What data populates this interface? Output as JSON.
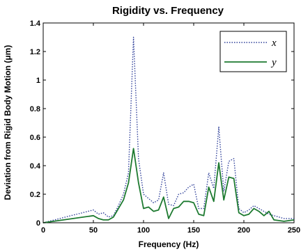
{
  "chart_data": {
    "type": "line",
    "title": "Rigidity vs. Frequency",
    "xlabel": "Frequency (Hz)",
    "ylabel": "Deviation from Rigid Body Motion (μm)",
    "xlim": [
      0,
      250
    ],
    "ylim": [
      0,
      1.4
    ],
    "xticks": [
      0,
      50,
      100,
      150,
      200,
      250
    ],
    "yticks": [
      0,
      0.2,
      0.4,
      0.6,
      0.8,
      1,
      1.2,
      1.4
    ],
    "xtick_labels": [
      "0",
      "50",
      "100",
      "150",
      "200",
      "250"
    ],
    "ytick_labels": [
      "0",
      "0.2",
      "0.4",
      "0.6",
      "0.8",
      "1",
      "1.2",
      "1.4"
    ],
    "grid": false,
    "legend_position": "top-right",
    "series": [
      {
        "name": "x",
        "color": "#2e3f99",
        "dash": "dotted",
        "x": [
          0,
          50,
          55,
          60,
          65,
          70,
          75,
          80,
          85,
          90,
          95,
          100,
          105,
          110,
          115,
          120,
          125,
          130,
          135,
          140,
          145,
          150,
          155,
          160,
          165,
          170,
          175,
          180,
          185,
          190,
          195,
          200,
          205,
          210,
          215,
          220,
          225,
          230,
          240,
          250
        ],
        "y": [
          0.0,
          0.09,
          0.06,
          0.07,
          0.04,
          0.05,
          0.12,
          0.2,
          0.35,
          1.3,
          0.45,
          0.2,
          0.17,
          0.14,
          0.16,
          0.35,
          0.13,
          0.12,
          0.2,
          0.21,
          0.25,
          0.27,
          0.1,
          0.1,
          0.35,
          0.24,
          0.67,
          0.22,
          0.43,
          0.45,
          0.1,
          0.07,
          0.09,
          0.12,
          0.1,
          0.08,
          0.06,
          0.05,
          0.03,
          0.03
        ]
      },
      {
        "name": "y",
        "color": "#1d7a30",
        "dash": "solid",
        "x": [
          0,
          50,
          55,
          60,
          65,
          70,
          75,
          80,
          85,
          90,
          95,
          100,
          105,
          110,
          115,
          120,
          125,
          130,
          135,
          140,
          145,
          150,
          155,
          160,
          165,
          170,
          175,
          180,
          185,
          190,
          195,
          200,
          205,
          210,
          215,
          220,
          225,
          230,
          240,
          250
        ],
        "y": [
          0.0,
          0.05,
          0.03,
          0.02,
          0.02,
          0.04,
          0.1,
          0.16,
          0.28,
          0.52,
          0.28,
          0.1,
          0.11,
          0.08,
          0.09,
          0.18,
          0.03,
          0.1,
          0.11,
          0.15,
          0.15,
          0.14,
          0.06,
          0.05,
          0.25,
          0.15,
          0.42,
          0.16,
          0.32,
          0.31,
          0.07,
          0.05,
          0.06,
          0.1,
          0.08,
          0.05,
          0.08,
          0.02,
          0.01,
          0.02
        ]
      }
    ]
  }
}
